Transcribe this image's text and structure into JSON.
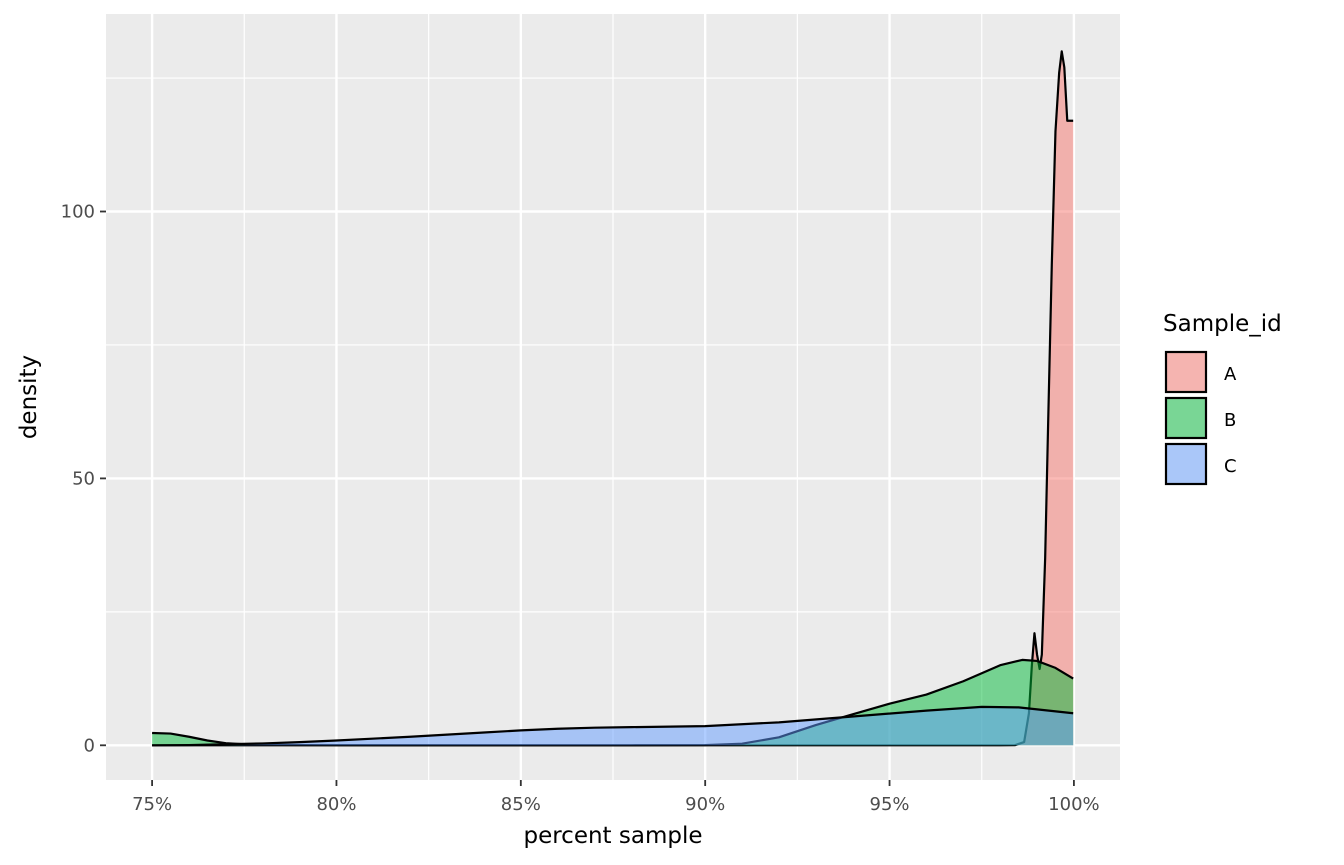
{
  "chart_data": {
    "type": "area",
    "subtype": "density",
    "xlabel": "percent sample",
    "ylabel": "density",
    "xlim": [
      0.7375,
      1.0125
    ],
    "ylim": [
      -6.5,
      137
    ],
    "x_ticks": [
      0.75,
      0.8,
      0.85,
      0.9,
      0.95,
      1.0
    ],
    "x_tick_labels": [
      "75%",
      "80%",
      "85%",
      "90%",
      "95%",
      "100%"
    ],
    "x_minor_ticks": [
      0.775,
      0.825,
      0.875,
      0.925,
      0.975
    ],
    "y_ticks": [
      0,
      50,
      100
    ],
    "y_tick_labels": [
      "0",
      "50",
      "100"
    ],
    "y_minor_ticks": [
      25,
      75,
      125
    ],
    "grid": true,
    "legend": {
      "title": "Sample_id",
      "position": "right"
    },
    "series": [
      {
        "name": "A",
        "color": "#F8766D",
        "points": [
          [
            0.75,
            0
          ],
          [
            0.98,
            0
          ],
          [
            0.984,
            0.02
          ],
          [
            0.9865,
            0.6
          ],
          [
            0.9878,
            6
          ],
          [
            0.9886,
            15
          ],
          [
            0.9893,
            21
          ],
          [
            0.99,
            17
          ],
          [
            0.9907,
            14.3
          ],
          [
            0.9913,
            17
          ],
          [
            0.9922,
            35
          ],
          [
            0.993,
            60
          ],
          [
            0.994,
            90
          ],
          [
            0.995,
            115
          ],
          [
            0.996,
            126
          ],
          [
            0.9967,
            130
          ],
          [
            0.9974,
            127
          ],
          [
            0.9982,
            117
          ],
          [
            0.9998,
            117
          ]
        ]
      },
      {
        "name": "B",
        "color": "#00BA38",
        "points": [
          [
            0.75,
            2.3
          ],
          [
            0.755,
            2.2
          ],
          [
            0.76,
            1.6
          ],
          [
            0.765,
            0.9
          ],
          [
            0.77,
            0.4
          ],
          [
            0.775,
            0.2
          ],
          [
            0.78,
            0.1
          ],
          [
            0.79,
            0.05
          ],
          [
            0.8,
            0.02
          ],
          [
            0.85,
            0
          ],
          [
            0.88,
            0
          ],
          [
            0.9,
            0.05
          ],
          [
            0.91,
            0.3
          ],
          [
            0.92,
            1.5
          ],
          [
            0.93,
            3.8
          ],
          [
            0.94,
            5.8
          ],
          [
            0.95,
            7.8
          ],
          [
            0.96,
            9.5
          ],
          [
            0.97,
            12
          ],
          [
            0.98,
            15
          ],
          [
            0.986,
            16
          ],
          [
            0.99,
            15.8
          ],
          [
            0.995,
            14.5
          ],
          [
            0.9998,
            12.5
          ]
        ]
      },
      {
        "name": "C",
        "color": "#619CFF",
        "points": [
          [
            0.75,
            0
          ],
          [
            0.76,
            0.05
          ],
          [
            0.77,
            0.2
          ],
          [
            0.78,
            0.35
          ],
          [
            0.79,
            0.6
          ],
          [
            0.8,
            0.9
          ],
          [
            0.82,
            1.6
          ],
          [
            0.84,
            2.4
          ],
          [
            0.85,
            2.8
          ],
          [
            0.86,
            3.1
          ],
          [
            0.87,
            3.3
          ],
          [
            0.88,
            3.4
          ],
          [
            0.9,
            3.6
          ],
          [
            0.92,
            4.3
          ],
          [
            0.94,
            5.4
          ],
          [
            0.96,
            6.5
          ],
          [
            0.975,
            7.2
          ],
          [
            0.985,
            7.1
          ],
          [
            0.9998,
            6
          ]
        ]
      }
    ]
  }
}
